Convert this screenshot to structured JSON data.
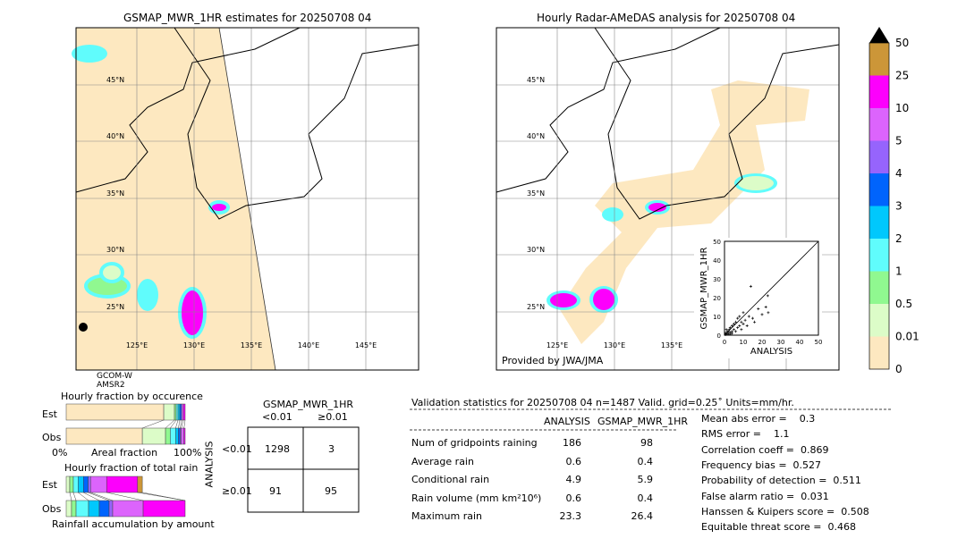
{
  "left_map": {
    "title": "GSMAP_MWR_1HR estimates for 20250708 04",
    "sensor_line1": "GCOM-W",
    "sensor_line2": "AMSR2"
  },
  "right_map": {
    "title": "Hourly Radar-AMeDAS analysis for 20250708 04",
    "credit": "Provided by JWA/JMA"
  },
  "lat_labels": [
    "45°N",
    "40°N",
    "35°N",
    "30°N",
    "25°N"
  ],
  "lon_labels": [
    "125°E",
    "130°E",
    "135°E",
    "140°E",
    "145°E"
  ],
  "colorbar": {
    "levels": [
      "0",
      "0.01",
      "0.5",
      "1",
      "2",
      "3",
      "4",
      "5",
      "10",
      "25",
      "50"
    ],
    "colors": [
      "#fde8c0",
      "#dcfcc8",
      "#90f890",
      "#60fcfc",
      "#00c8fc",
      "#0064fc",
      "#9664fc",
      "#dc64fc",
      "#fc00fc",
      "#cc9638"
    ],
    "extend_color": "#000000"
  },
  "chart_data": {
    "type": "scatter",
    "xlabel": "ANALYSIS",
    "ylabel": "GSMAP_MWR_1HR",
    "xlim": [
      0,
      50
    ],
    "ylim": [
      0,
      50
    ],
    "ticks": [
      "0",
      "10",
      "20",
      "30",
      "40",
      "50"
    ],
    "points": [
      [
        0.5,
        0.3
      ],
      [
        1,
        0.5
      ],
      [
        1.5,
        2
      ],
      [
        2,
        1
      ],
      [
        2.5,
        3
      ],
      [
        3,
        1.5
      ],
      [
        3,
        4
      ],
      [
        4,
        2
      ],
      [
        4,
        5
      ],
      [
        5,
        3
      ],
      [
        5,
        6
      ],
      [
        6,
        2
      ],
      [
        6,
        7
      ],
      [
        7,
        4
      ],
      [
        7,
        9
      ],
      [
        8,
        5
      ],
      [
        8,
        10
      ],
      [
        9,
        7
      ],
      [
        9,
        3
      ],
      [
        10,
        12
      ],
      [
        10,
        6
      ],
      [
        11,
        8
      ],
      [
        12,
        5
      ],
      [
        13,
        10
      ],
      [
        14,
        26
      ],
      [
        15,
        9
      ],
      [
        16,
        7
      ],
      [
        18,
        14
      ],
      [
        20,
        11
      ],
      [
        22,
        15
      ],
      [
        23,
        21
      ],
      [
        23.3,
        12
      ],
      [
        2,
        0.5
      ],
      [
        1,
        1
      ],
      [
        0.5,
        1
      ],
      [
        3,
        0.5
      ],
      [
        4,
        1
      ],
      [
        1,
        3
      ],
      [
        2,
        2
      ]
    ]
  },
  "occurrence": {
    "title": "Hourly fraction by occurence",
    "est_label": "Est",
    "obs_label": "Obs",
    "x_min": "0%",
    "x_label": "Areal fraction",
    "x_max": "100%",
    "est": [
      82,
      9,
      1.5,
      1.5,
      1.5,
      1.5,
      1.5,
      1.5
    ],
    "est_colors": [
      "#fde8c0",
      "#dcfcc8",
      "#90f890",
      "#60fcfc",
      "#00c8fc",
      "#0064fc",
      "#dc64fc",
      "#fc00fc"
    ],
    "obs": [
      64,
      19.5,
      4,
      4.5,
      2.3,
      1.5,
      1,
      2.2,
      1
    ],
    "obs_colors": [
      "#fde8c0",
      "#dcfcc8",
      "#90f890",
      "#60fcfc",
      "#00c8fc",
      "#0064fc",
      "#9664fc",
      "#dc64fc",
      "#fc00fc"
    ]
  },
  "total_rain": {
    "title": "Hourly fraction of total rain",
    "est_label": "Est",
    "obs_label": "Obs",
    "x_label": "Rainfall accumulation by amount",
    "est": [
      3,
      3,
      4,
      4.5,
      4,
      2,
      13.5,
      26,
      4
    ],
    "obs": [
      4.5,
      3.8,
      10.5,
      9,
      8.3,
      3,
      25.6,
      35.3,
      0
    ],
    "colors": [
      "#dcfcc8",
      "#90f890",
      "#60fcfc",
      "#00c8fc",
      "#0064fc",
      "#9664fc",
      "#dc64fc",
      "#fc00fc",
      "#cc9638"
    ]
  },
  "contingency": {
    "title": "GSMAP_MWR_1HR",
    "col1": "<0.01",
    "col2": "≥0.01",
    "row_axis": "ANALYSIS",
    "row1": "<0.01",
    "row2": "≥0.01",
    "cells": [
      "1298",
      "3",
      "91",
      "95"
    ]
  },
  "stats": {
    "header": "Validation statistics for 20250708 04  n=1487 Valid. grid=0.25˚ Units=mm/hr.",
    "col1": "ANALYSIS",
    "col2": "GSMAP_MWR_1HR",
    "rows": [
      {
        "label": "Num of gridpoints raining",
        "a": "186",
        "g": "98"
      },
      {
        "label": "Average rain",
        "a": "0.6",
        "g": "0.4"
      },
      {
        "label": "Conditional rain",
        "a": "4.9",
        "g": "5.9"
      },
      {
        "label": "Rain volume (mm km²10⁶)",
        "a": "0.6",
        "g": "0.4"
      },
      {
        "label": "Maximum rain",
        "a": "23.3",
        "g": "26.4"
      }
    ],
    "scores": [
      "Mean abs error =    0.3",
      "RMS error =    1.1",
      "Correlation coeff =  0.869",
      "Frequency bias =  0.527",
      "Probability of detection =  0.511",
      "False alarm ratio =  0.031",
      "Hanssen & Kuipers score =  0.508",
      "Equitable threat score =  0.468"
    ]
  }
}
